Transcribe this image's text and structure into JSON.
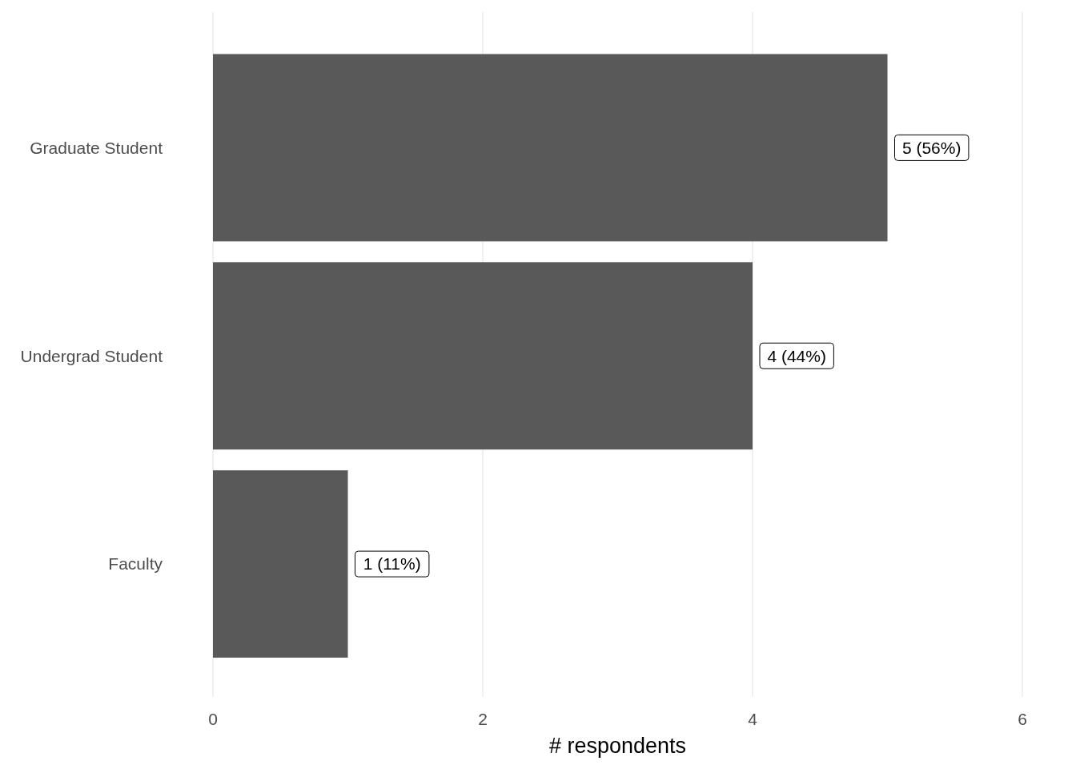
{
  "chart_data": {
    "type": "bar",
    "orientation": "horizontal",
    "categories": [
      "Graduate Student",
      "Undergrad Student",
      "Faculty"
    ],
    "values": [
      5,
      4,
      1
    ],
    "color": "#595959",
    "value_labels": [
      "5 (56%)",
      "4 (44%)",
      "1 (11%)"
    ],
    "xlabel": "# respondents",
    "xlim": [
      0,
      6
    ],
    "xticks": [
      0,
      2,
      4,
      6
    ],
    "grid": "x"
  }
}
